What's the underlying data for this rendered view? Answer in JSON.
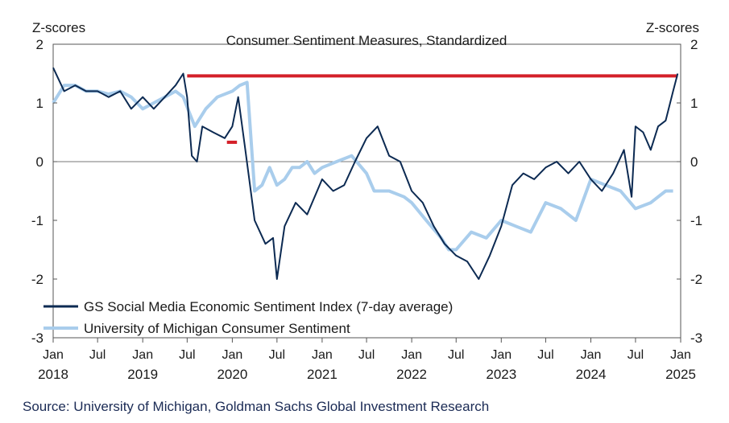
{
  "chart_data": {
    "type": "line",
    "title": "Consumer Sentiment Measures, Standardized",
    "ylabel_left": "Z-scores",
    "ylabel_right": "Z-scores",
    "ylim": [
      -3,
      2
    ],
    "yticks": [
      -3,
      -2,
      -1,
      0,
      1,
      2
    ],
    "xlim": [
      "2018-01-01",
      "2025-01-01"
    ],
    "xticks": [
      {
        "date": "2018-01-01",
        "label": "Jan",
        "year": "2018"
      },
      {
        "date": "2018-07-01",
        "label": "Jul",
        "year": ""
      },
      {
        "date": "2019-01-01",
        "label": "Jan",
        "year": "2019"
      },
      {
        "date": "2019-07-01",
        "label": "Jul",
        "year": ""
      },
      {
        "date": "2020-01-01",
        "label": "Jan",
        "year": "2020"
      },
      {
        "date": "2020-07-01",
        "label": "Jul",
        "year": ""
      },
      {
        "date": "2021-01-01",
        "label": "Jan",
        "year": "2021"
      },
      {
        "date": "2021-07-01",
        "label": "Jul",
        "year": ""
      },
      {
        "date": "2022-01-01",
        "label": "Jan",
        "year": "2022"
      },
      {
        "date": "2022-07-01",
        "label": "Jul",
        "year": ""
      },
      {
        "date": "2023-01-01",
        "label": "Jan",
        "year": "2023"
      },
      {
        "date": "2023-07-01",
        "label": "Jul",
        "year": ""
      },
      {
        "date": "2024-01-01",
        "label": "Jan",
        "year": "2024"
      },
      {
        "date": "2024-07-01",
        "label": "Jul",
        "year": ""
      },
      {
        "date": "2025-01-01",
        "label": "Jan",
        "year": "2025"
      }
    ],
    "grid": false,
    "zero_line": true,
    "legend_position": "bottom-left",
    "colors": {
      "gs": "#0c2a52",
      "umich": "#a9cdec",
      "reference": "#d42029"
    },
    "series": [
      {
        "name": "GS Social Media Economic Sentiment Index (7-day average)",
        "color": "#0c2a52",
        "points": [
          [
            "2018-01-01",
            1.6
          ],
          [
            "2018-02-15",
            1.2
          ],
          [
            "2018-04-01",
            1.3
          ],
          [
            "2018-05-15",
            1.2
          ],
          [
            "2018-07-01",
            1.2
          ],
          [
            "2018-08-15",
            1.1
          ],
          [
            "2018-10-01",
            1.2
          ],
          [
            "2018-11-15",
            0.9
          ],
          [
            "2019-01-01",
            1.1
          ],
          [
            "2019-02-15",
            0.9
          ],
          [
            "2019-04-01",
            1.1
          ],
          [
            "2019-05-15",
            1.3
          ],
          [
            "2019-06-15",
            1.5
          ],
          [
            "2019-07-01",
            1.1
          ],
          [
            "2019-07-20",
            0.1
          ],
          [
            "2019-08-10",
            0.0
          ],
          [
            "2019-09-01",
            0.6
          ],
          [
            "2019-10-15",
            0.5
          ],
          [
            "2019-12-01",
            0.4
          ],
          [
            "2020-01-01",
            0.6
          ],
          [
            "2020-01-25",
            1.1
          ],
          [
            "2020-02-20",
            0.3
          ],
          [
            "2020-03-10",
            -0.3
          ],
          [
            "2020-04-01",
            -1.0
          ],
          [
            "2020-05-15",
            -1.4
          ],
          [
            "2020-06-15",
            -1.3
          ],
          [
            "2020-07-01",
            -2.0
          ],
          [
            "2020-08-01",
            -1.1
          ],
          [
            "2020-09-15",
            -0.7
          ],
          [
            "2020-11-01",
            -0.9
          ],
          [
            "2021-01-01",
            -0.3
          ],
          [
            "2021-02-15",
            -0.5
          ],
          [
            "2021-04-01",
            -0.4
          ],
          [
            "2021-05-15",
            0.0
          ],
          [
            "2021-07-01",
            0.4
          ],
          [
            "2021-08-15",
            0.6
          ],
          [
            "2021-10-01",
            0.1
          ],
          [
            "2021-11-15",
            0.0
          ],
          [
            "2022-01-01",
            -0.5
          ],
          [
            "2022-02-15",
            -0.7
          ],
          [
            "2022-04-01",
            -1.1
          ],
          [
            "2022-05-15",
            -1.4
          ],
          [
            "2022-07-01",
            -1.6
          ],
          [
            "2022-08-15",
            -1.7
          ],
          [
            "2022-10-01",
            -2.0
          ],
          [
            "2022-11-15",
            -1.6
          ],
          [
            "2023-01-01",
            -1.1
          ],
          [
            "2023-02-15",
            -0.4
          ],
          [
            "2023-04-01",
            -0.2
          ],
          [
            "2023-05-15",
            -0.3
          ],
          [
            "2023-07-01",
            -0.1
          ],
          [
            "2023-08-15",
            0.0
          ],
          [
            "2023-10-01",
            -0.2
          ],
          [
            "2023-11-15",
            0.0
          ],
          [
            "2024-01-01",
            -0.3
          ],
          [
            "2024-02-15",
            -0.5
          ],
          [
            "2024-04-01",
            -0.2
          ],
          [
            "2024-05-15",
            0.2
          ],
          [
            "2024-06-15",
            -0.6
          ],
          [
            "2024-07-01",
            0.6
          ],
          [
            "2024-08-01",
            0.5
          ],
          [
            "2024-09-01",
            0.2
          ],
          [
            "2024-10-01",
            0.6
          ],
          [
            "2024-11-01",
            0.7
          ],
          [
            "2024-12-01",
            1.2
          ],
          [
            "2024-12-20",
            1.5
          ]
        ]
      },
      {
        "name": "University of Michigan Consumer Sentiment",
        "color": "#a9cdec",
        "points": [
          [
            "2018-01-01",
            1.0
          ],
          [
            "2018-02-15",
            1.3
          ],
          [
            "2018-04-01",
            1.3
          ],
          [
            "2018-05-15",
            1.2
          ],
          [
            "2018-07-01",
            1.2
          ],
          [
            "2018-08-15",
            1.15
          ],
          [
            "2018-10-01",
            1.2
          ],
          [
            "2018-11-15",
            1.1
          ],
          [
            "2019-01-01",
            0.9
          ],
          [
            "2019-02-15",
            1.0
          ],
          [
            "2019-04-01",
            1.1
          ],
          [
            "2019-05-15",
            1.2
          ],
          [
            "2019-06-15",
            1.1
          ],
          [
            "2019-08-01",
            0.6
          ],
          [
            "2019-09-15",
            0.9
          ],
          [
            "2019-11-01",
            1.1
          ],
          [
            "2020-01-01",
            1.2
          ],
          [
            "2020-02-01",
            1.3
          ],
          [
            "2020-03-01",
            1.35
          ],
          [
            "2020-04-01",
            -0.5
          ],
          [
            "2020-05-01",
            -0.4
          ],
          [
            "2020-06-01",
            -0.1
          ],
          [
            "2020-07-01",
            -0.4
          ],
          [
            "2020-08-01",
            -0.3
          ],
          [
            "2020-09-01",
            -0.1
          ],
          [
            "2020-10-01",
            -0.1
          ],
          [
            "2020-11-01",
            0.0
          ],
          [
            "2020-12-01",
            -0.2
          ],
          [
            "2021-01-01",
            -0.1
          ],
          [
            "2021-03-01",
            0.0
          ],
          [
            "2021-05-01",
            0.1
          ],
          [
            "2021-07-01",
            -0.2
          ],
          [
            "2021-08-01",
            -0.5
          ],
          [
            "2021-10-01",
            -0.5
          ],
          [
            "2021-12-01",
            -0.6
          ],
          [
            "2022-01-01",
            -0.7
          ],
          [
            "2022-03-01",
            -1.0
          ],
          [
            "2022-05-01",
            -1.3
          ],
          [
            "2022-06-01",
            -1.5
          ],
          [
            "2022-07-01",
            -1.5
          ],
          [
            "2022-09-01",
            -1.2
          ],
          [
            "2022-11-01",
            -1.3
          ],
          [
            "2023-01-01",
            -1.0
          ],
          [
            "2023-03-01",
            -1.1
          ],
          [
            "2023-05-01",
            -1.2
          ],
          [
            "2023-07-01",
            -0.7
          ],
          [
            "2023-09-01",
            -0.8
          ],
          [
            "2023-11-01",
            -1.0
          ],
          [
            "2024-01-01",
            -0.3
          ],
          [
            "2024-03-01",
            -0.4
          ],
          [
            "2024-05-01",
            -0.5
          ],
          [
            "2024-07-01",
            -0.8
          ],
          [
            "2024-09-01",
            -0.7
          ],
          [
            "2024-10-01",
            -0.6
          ],
          [
            "2024-11-01",
            -0.5
          ],
          [
            "2024-12-01",
            -0.5
          ]
        ]
      }
    ],
    "reference_lines": [
      {
        "color": "#d42029",
        "from": "2019-07-01",
        "to": "2024-12-20",
        "y": 1.46
      },
      {
        "color": "#d42029",
        "from": "2019-12-10",
        "to": "2020-01-20",
        "y": 0.33
      }
    ]
  },
  "source": "Source: University of Michigan, Goldman Sachs Global Investment Research"
}
